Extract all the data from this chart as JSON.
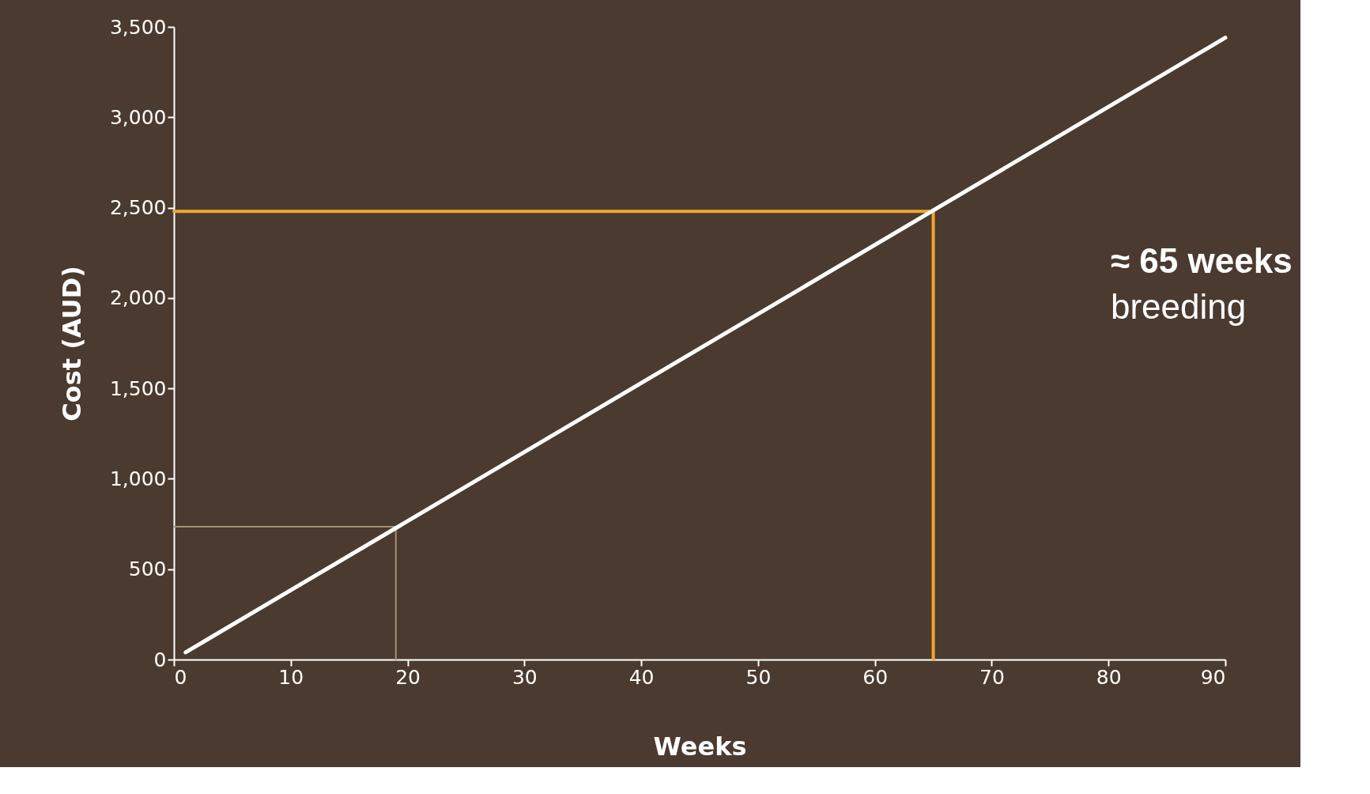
{
  "chart_data": {
    "type": "line",
    "xlabel": "Weeks",
    "ylabel": "Cost (AUD)",
    "annotations": [
      "≈ 65 weeks",
      "breeding"
    ],
    "xlim": [
      0,
      90
    ],
    "xticks": [
      0,
      10,
      20,
      30,
      40,
      50,
      60,
      70,
      80,
      90
    ],
    "ylim": [
      0,
      3500
    ],
    "yticks": [
      0,
      500,
      {
        "value": 1000,
        "label": "1,000"
      },
      {
        "value": 1500,
        "label": "1,500"
      },
      {
        "value": 2000,
        "label": "2,000"
      },
      {
        "value": 2500,
        "label": "2,500"
      },
      {
        "value": 3000,
        "label": "3,000"
      },
      {
        "value": 3500,
        "label": "3,500"
      }
    ],
    "grid": false,
    "line_style": "solid",
    "marker": "none",
    "series": [
      {
        "color": "#ffffff",
        "x": [
          1,
          90
        ],
        "values": [
          40,
          3440
        ]
      },
      {
        "color": "#a09274",
        "x": [
          0,
          19,
          19
        ],
        "values": [
          735,
          735,
          0
        ]
      },
      {
        "color": "#f0a830",
        "x": [
          0,
          65,
          65
        ],
        "values": [
          2480,
          2480,
          0
        ]
      }
    ]
  }
}
